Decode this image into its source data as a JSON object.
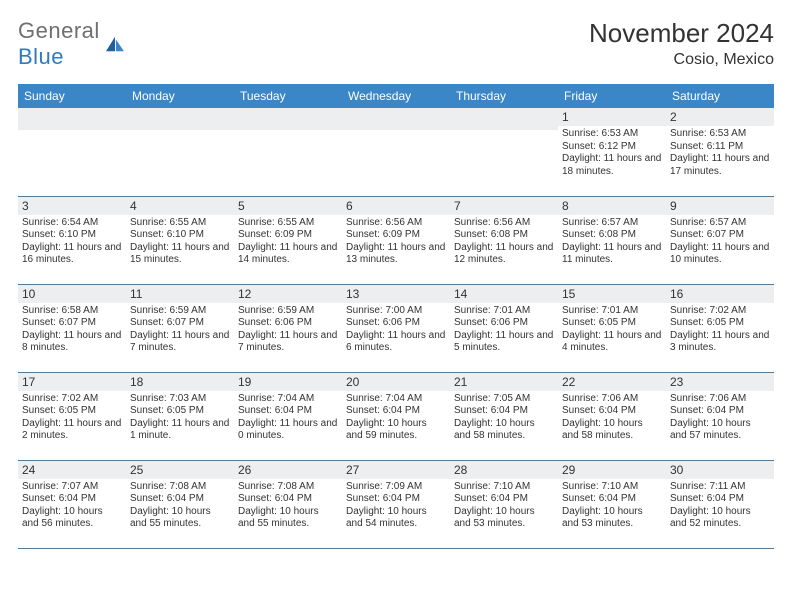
{
  "logo": {
    "word1": "General",
    "word2": "Blue"
  },
  "header": {
    "title": "November 2024",
    "location": "Cosio, Mexico"
  },
  "colors": {
    "header_bg": "#3b86c6",
    "header_text": "#ffffff",
    "daynum_bg": "#eceeef",
    "cell_border": "#5a7a96",
    "logo_gray": "#6f6f6f",
    "logo_blue": "#2f7bbf",
    "sail_dark": "#1e5f9e",
    "sail_light": "#3b86c6"
  },
  "day_headers": [
    "Sunday",
    "Monday",
    "Tuesday",
    "Wednesday",
    "Thursday",
    "Friday",
    "Saturday"
  ],
  "first_weekday": 5,
  "days": [
    {
      "n": 1,
      "sunrise": "6:53 AM",
      "sunset": "6:12 PM",
      "daylight": "11 hours and 18 minutes."
    },
    {
      "n": 2,
      "sunrise": "6:53 AM",
      "sunset": "6:11 PM",
      "daylight": "11 hours and 17 minutes."
    },
    {
      "n": 3,
      "sunrise": "6:54 AM",
      "sunset": "6:10 PM",
      "daylight": "11 hours and 16 minutes."
    },
    {
      "n": 4,
      "sunrise": "6:55 AM",
      "sunset": "6:10 PM",
      "daylight": "11 hours and 15 minutes."
    },
    {
      "n": 5,
      "sunrise": "6:55 AM",
      "sunset": "6:09 PM",
      "daylight": "11 hours and 14 minutes."
    },
    {
      "n": 6,
      "sunrise": "6:56 AM",
      "sunset": "6:09 PM",
      "daylight": "11 hours and 13 minutes."
    },
    {
      "n": 7,
      "sunrise": "6:56 AM",
      "sunset": "6:08 PM",
      "daylight": "11 hours and 12 minutes."
    },
    {
      "n": 8,
      "sunrise": "6:57 AM",
      "sunset": "6:08 PM",
      "daylight": "11 hours and 11 minutes."
    },
    {
      "n": 9,
      "sunrise": "6:57 AM",
      "sunset": "6:07 PM",
      "daylight": "11 hours and 10 minutes."
    },
    {
      "n": 10,
      "sunrise": "6:58 AM",
      "sunset": "6:07 PM",
      "daylight": "11 hours and 8 minutes."
    },
    {
      "n": 11,
      "sunrise": "6:59 AM",
      "sunset": "6:07 PM",
      "daylight": "11 hours and 7 minutes."
    },
    {
      "n": 12,
      "sunrise": "6:59 AM",
      "sunset": "6:06 PM",
      "daylight": "11 hours and 7 minutes."
    },
    {
      "n": 13,
      "sunrise": "7:00 AM",
      "sunset": "6:06 PM",
      "daylight": "11 hours and 6 minutes."
    },
    {
      "n": 14,
      "sunrise": "7:01 AM",
      "sunset": "6:06 PM",
      "daylight": "11 hours and 5 minutes."
    },
    {
      "n": 15,
      "sunrise": "7:01 AM",
      "sunset": "6:05 PM",
      "daylight": "11 hours and 4 minutes."
    },
    {
      "n": 16,
      "sunrise": "7:02 AM",
      "sunset": "6:05 PM",
      "daylight": "11 hours and 3 minutes."
    },
    {
      "n": 17,
      "sunrise": "7:02 AM",
      "sunset": "6:05 PM",
      "daylight": "11 hours and 2 minutes."
    },
    {
      "n": 18,
      "sunrise": "7:03 AM",
      "sunset": "6:05 PM",
      "daylight": "11 hours and 1 minute."
    },
    {
      "n": 19,
      "sunrise": "7:04 AM",
      "sunset": "6:04 PM",
      "daylight": "11 hours and 0 minutes."
    },
    {
      "n": 20,
      "sunrise": "7:04 AM",
      "sunset": "6:04 PM",
      "daylight": "10 hours and 59 minutes."
    },
    {
      "n": 21,
      "sunrise": "7:05 AM",
      "sunset": "6:04 PM",
      "daylight": "10 hours and 58 minutes."
    },
    {
      "n": 22,
      "sunrise": "7:06 AM",
      "sunset": "6:04 PM",
      "daylight": "10 hours and 58 minutes."
    },
    {
      "n": 23,
      "sunrise": "7:06 AM",
      "sunset": "6:04 PM",
      "daylight": "10 hours and 57 minutes."
    },
    {
      "n": 24,
      "sunrise": "7:07 AM",
      "sunset": "6:04 PM",
      "daylight": "10 hours and 56 minutes."
    },
    {
      "n": 25,
      "sunrise": "7:08 AM",
      "sunset": "6:04 PM",
      "daylight": "10 hours and 55 minutes."
    },
    {
      "n": 26,
      "sunrise": "7:08 AM",
      "sunset": "6:04 PM",
      "daylight": "10 hours and 55 minutes."
    },
    {
      "n": 27,
      "sunrise": "7:09 AM",
      "sunset": "6:04 PM",
      "daylight": "10 hours and 54 minutes."
    },
    {
      "n": 28,
      "sunrise": "7:10 AM",
      "sunset": "6:04 PM",
      "daylight": "10 hours and 53 minutes."
    },
    {
      "n": 29,
      "sunrise": "7:10 AM",
      "sunset": "6:04 PM",
      "daylight": "10 hours and 53 minutes."
    },
    {
      "n": 30,
      "sunrise": "7:11 AM",
      "sunset": "6:04 PM",
      "daylight": "10 hours and 52 minutes."
    }
  ],
  "labels": {
    "sunrise": "Sunrise:",
    "sunset": "Sunset:",
    "daylight": "Daylight:"
  }
}
